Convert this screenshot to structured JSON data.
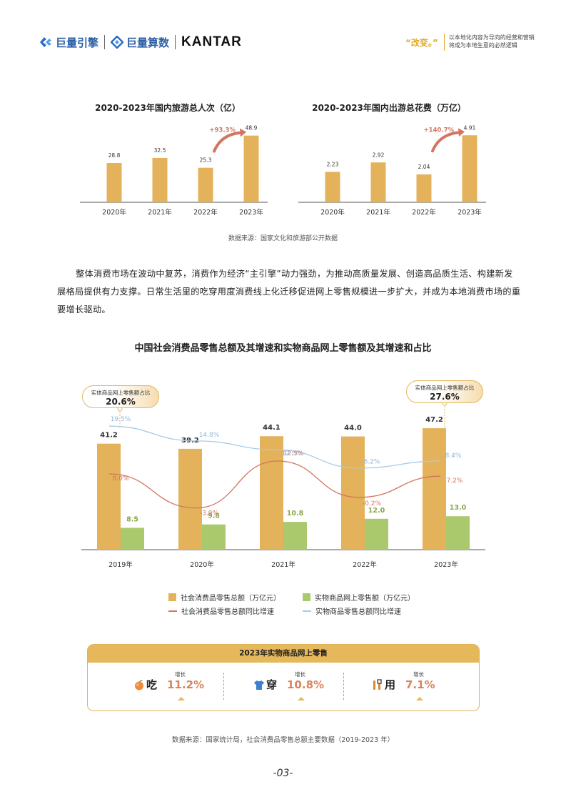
{
  "header": {
    "brand1": "巨量引擎",
    "brand2": "巨量算数",
    "brand3": "KANTAR",
    "tagline_quote": "“改变。”",
    "tagline_line1": "以本地化内容为导向的经营和营销",
    "tagline_line2": "将成为本地生意的必然逻辑"
  },
  "chart1": {
    "title": "2020-2023年国内旅游总人次（亿）",
    "growth_label": "+93.3%"
  },
  "chart2": {
    "title": "2020-2023年国内出游总花费（万亿）",
    "growth_label": "+140.7%"
  },
  "top_source": "数据来源：国家文化和旅游部公开数据",
  "paragraph": "整体消费市场在波动中复苏，消费作为经济“主引擎”动力强劲，为推动高质量发展、创造高品质生活、构建新发展格局提供有力支撑。日常生活里的吃穿用度消费线上化迁移促进网上零售规模进一步扩大，并成为本地消费市场的重要增长驱动。",
  "big_chart": {
    "title": "中国社会消费品零售总额及其增速和实物商品网上零售额及其增速和占比",
    "callout_label": "实体商品网上零售额占比",
    "callout_2019": "20.6%",
    "callout_2023": "27.6%",
    "legend": {
      "bar1": "社会消费品零售总额（万亿元）",
      "bar2": "实物商品网上零售额（万亿元）",
      "line1": "社会消费品零售总额同比增速",
      "line2": "实物商品零售总额同比增速"
    }
  },
  "panel": {
    "title": "2023年实物商品网上零售",
    "items": [
      {
        "category": "吃",
        "growth_label": "增长",
        "value": "11.2%",
        "icon": "peach-icon"
      },
      {
        "category": "穿",
        "growth_label": "增长",
        "value": "10.8%",
        "icon": "shirt-icon"
      },
      {
        "category": "用",
        "growth_label": "增长",
        "value": "7.1%",
        "icon": "tools-icon"
      }
    ]
  },
  "bottom_source": "数据来源：国家统计局，社会消费品零售总额主要数据（2019-2023 年）",
  "page_number": "-03-",
  "colors": {
    "gold": "#e3b25a",
    "green": "#a9c96c",
    "red_line": "#d3755f",
    "blue_line": "#a9cbe6",
    "growth_text": "#d9845a"
  },
  "chart_data": [
    {
      "type": "bar",
      "title": "2020-2023年国内旅游总人次（亿）",
      "categories": [
        "2020年",
        "2021年",
        "2022年",
        "2023年"
      ],
      "values": [
        28.8,
        32.5,
        25.3,
        48.9
      ],
      "value_labels": [
        "28.8",
        "32.5",
        "25.3",
        "48.9"
      ],
      "annotation": "+93.3%",
      "ylim": [
        0,
        55
      ]
    },
    {
      "type": "bar",
      "title": "2020-2023年国内出游总花费（万亿）",
      "categories": [
        "2020年",
        "2021年",
        "2022年",
        "2023年"
      ],
      "values": [
        2.23,
        2.92,
        2.04,
        4.91
      ],
      "value_labels": [
        "2.23",
        "2.92",
        "2.04",
        "4.91"
      ],
      "annotation": "+140.7%",
      "ylim": [
        0,
        5.5
      ]
    },
    {
      "type": "bar",
      "title": "中国社会消费品零售总额及其增速和实物商品网上零售额及其增速和占比",
      "categories": [
        "2019年",
        "2020年",
        "2021年",
        "2022年",
        "2023年"
      ],
      "series": [
        {
          "name": "社会消费品零售总额（万亿元）",
          "values": [
            41.2,
            39.2,
            44.1,
            44.0,
            47.2
          ],
          "labels": [
            "41.2",
            "39.2",
            "44.1",
            "44.0",
            "47.2"
          ]
        },
        {
          "name": "实物商品网上零售额（万亿元）",
          "values": [
            8.5,
            9.8,
            10.8,
            12.0,
            13.0
          ],
          "labels": [
            "8.5",
            "9.8",
            "10.8",
            "12.0",
            "13.0"
          ]
        }
      ],
      "lines": [
        {
          "name": "社会消费品零售总额同比增速",
          "values": [
            8.0,
            -3.9,
            12.5,
            -0.2,
            7.2
          ],
          "labels": [
            "8.0%",
            "-3.9%",
            "12.5%",
            "-0.2%",
            "7.2%"
          ]
        },
        {
          "name": "实物商品零售总额同比增速",
          "values": [
            19.5,
            14.8,
            12.0,
            6.2,
            8.4
          ],
          "labels": [
            "19.5%",
            "14.8%",
            "12.0%",
            "6.2%",
            "8.4%"
          ]
        }
      ],
      "share_callouts": {
        "2019年": "20.6%",
        "2023年": "27.6%"
      }
    }
  ]
}
